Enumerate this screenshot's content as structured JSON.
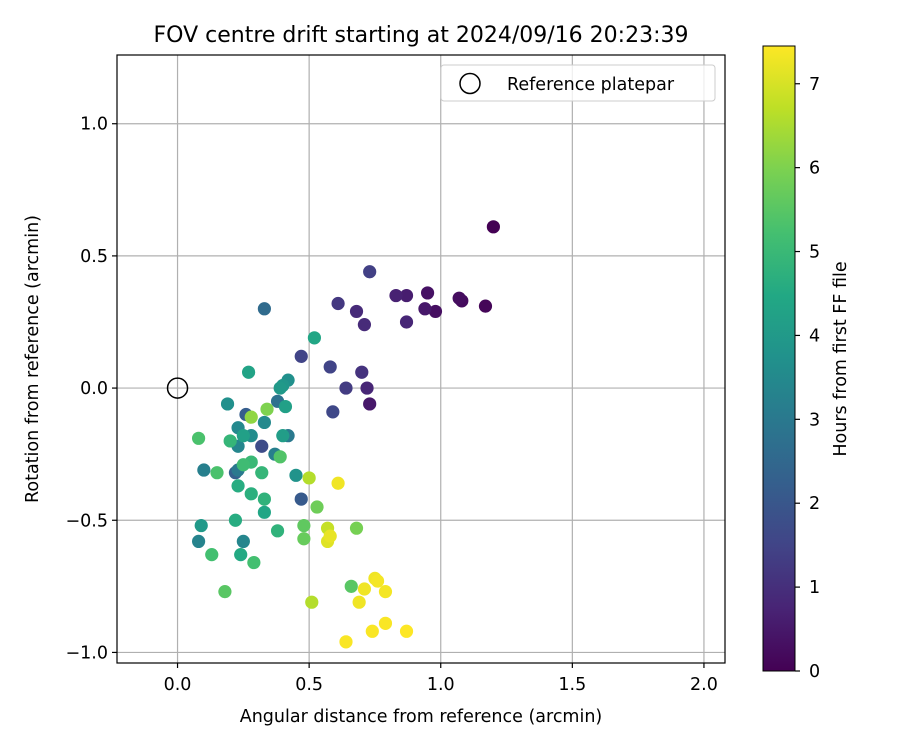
{
  "chart_data": {
    "type": "scatter",
    "title": "FOV centre drift starting at 2024/09/16 20:23:39",
    "xlabel": "Angular distance from reference (arcmin)",
    "ylabel": "Rotation from reference (arcmin)",
    "xlim": [
      -0.23,
      2.08
    ],
    "ylim": [
      -1.04,
      1.26
    ],
    "xticks": [
      0.0,
      0.5,
      1.0,
      1.5,
      2.0
    ],
    "xtick_labels": [
      "0.0",
      "0.5",
      "1.0",
      "1.5",
      "2.0"
    ],
    "yticks": [
      -1.0,
      -0.5,
      0.0,
      0.5,
      1.0
    ],
    "ytick_labels": [
      "−1.0",
      "−0.5",
      "0.0",
      "0.5",
      "1.0"
    ],
    "grid": true,
    "legend": {
      "position": "top-right",
      "label": "Reference platepar"
    },
    "reference_point": {
      "x": 0.0,
      "y": 0.0
    },
    "colorbar": {
      "label": "Hours from first FF file",
      "colormap": "viridis",
      "range": [
        0,
        7.45
      ],
      "ticks": [
        0,
        1,
        2,
        3,
        4,
        5,
        6,
        7
      ],
      "tick_labels": [
        "0",
        "1",
        "2",
        "3",
        "4",
        "5",
        "6",
        "7"
      ]
    },
    "points": [
      {
        "x": 1.2,
        "y": 0.61,
        "h": 0.0
      },
      {
        "x": 1.17,
        "y": 0.31,
        "h": 0.1
      },
      {
        "x": 1.08,
        "y": 0.33,
        "h": 0.2
      },
      {
        "x": 1.07,
        "y": 0.34,
        "h": 0.25
      },
      {
        "x": 0.98,
        "y": 0.29,
        "h": 0.3
      },
      {
        "x": 0.95,
        "y": 0.36,
        "h": 0.35
      },
      {
        "x": 0.94,
        "y": 0.3,
        "h": 0.5
      },
      {
        "x": 0.87,
        "y": 0.35,
        "h": 0.6
      },
      {
        "x": 0.83,
        "y": 0.35,
        "h": 0.7
      },
      {
        "x": 0.87,
        "y": 0.25,
        "h": 0.8
      },
      {
        "x": 0.73,
        "y": -0.06,
        "h": 0.5
      },
      {
        "x": 0.72,
        "y": 0.0,
        "h": 0.8
      },
      {
        "x": 0.71,
        "y": 0.24,
        "h": 0.9
      },
      {
        "x": 0.68,
        "y": 0.29,
        "h": 0.9
      },
      {
        "x": 0.7,
        "y": 0.06,
        "h": 1.1
      },
      {
        "x": 0.61,
        "y": 0.32,
        "h": 1.2
      },
      {
        "x": 0.64,
        "y": 0.0,
        "h": 1.3
      },
      {
        "x": 0.73,
        "y": 0.44,
        "h": 1.4
      },
      {
        "x": 0.58,
        "y": 0.08,
        "h": 1.5
      },
      {
        "x": 0.59,
        "y": -0.09,
        "h": 1.6
      },
      {
        "x": 0.47,
        "y": 0.12,
        "h": 1.5
      },
      {
        "x": 0.32,
        "y": -0.22,
        "h": 1.7
      },
      {
        "x": 0.47,
        "y": -0.42,
        "h": 2.1
      },
      {
        "x": 0.33,
        "y": 0.3,
        "h": 2.6
      },
      {
        "x": 0.26,
        "y": -0.1,
        "h": 2.2
      },
      {
        "x": 0.22,
        "y": -0.32,
        "h": 2.3
      },
      {
        "x": 0.38,
        "y": -0.05,
        "h": 2.8
      },
      {
        "x": 0.37,
        "y": -0.25,
        "h": 3.2
      },
      {
        "x": 0.42,
        "y": -0.18,
        "h": 3.0
      },
      {
        "x": 0.23,
        "y": -0.31,
        "h": 3.0
      },
      {
        "x": 0.1,
        "y": -0.31,
        "h": 3.2
      },
      {
        "x": 0.08,
        "y": -0.58,
        "h": 3.3
      },
      {
        "x": 0.25,
        "y": -0.58,
        "h": 3.4
      },
      {
        "x": 0.23,
        "y": -0.22,
        "h": 3.4
      },
      {
        "x": 0.33,
        "y": -0.13,
        "h": 3.5
      },
      {
        "x": 0.28,
        "y": -0.18,
        "h": 3.6
      },
      {
        "x": 0.23,
        "y": -0.15,
        "h": 3.5
      },
      {
        "x": 0.19,
        "y": -0.06,
        "h": 3.7
      },
      {
        "x": 0.42,
        "y": 0.03,
        "h": 3.7
      },
      {
        "x": 0.45,
        "y": -0.33,
        "h": 3.8
      },
      {
        "x": 0.4,
        "y": 0.01,
        "h": 3.9
      },
      {
        "x": 0.39,
        "y": 0.0,
        "h": 4.0
      },
      {
        "x": 0.4,
        "y": -0.18,
        "h": 4.1
      },
      {
        "x": 0.41,
        "y": -0.07,
        "h": 4.2
      },
      {
        "x": 0.25,
        "y": -0.18,
        "h": 4.2
      },
      {
        "x": 0.09,
        "y": -0.52,
        "h": 4.0
      },
      {
        "x": 0.27,
        "y": 0.06,
        "h": 4.3
      },
      {
        "x": 0.33,
        "y": -0.47,
        "h": 4.4
      },
      {
        "x": 0.52,
        "y": 0.19,
        "h": 4.4
      },
      {
        "x": 0.24,
        "y": -0.63,
        "h": 4.5
      },
      {
        "x": 0.23,
        "y": -0.37,
        "h": 4.6
      },
      {
        "x": 0.22,
        "y": -0.5,
        "h": 4.6
      },
      {
        "x": 0.28,
        "y": -0.4,
        "h": 4.7
      },
      {
        "x": 0.33,
        "y": -0.42,
        "h": 4.8
      },
      {
        "x": 0.38,
        "y": -0.54,
        "h": 4.8
      },
      {
        "x": 0.32,
        "y": -0.32,
        "h": 4.9
      },
      {
        "x": 0.2,
        "y": -0.2,
        "h": 4.9
      },
      {
        "x": 0.28,
        "y": -0.28,
        "h": 5.0
      },
      {
        "x": 0.25,
        "y": -0.29,
        "h": 5.1
      },
      {
        "x": 0.13,
        "y": -0.63,
        "h": 5.2
      },
      {
        "x": 0.29,
        "y": -0.66,
        "h": 5.2
      },
      {
        "x": 0.08,
        "y": -0.19,
        "h": 5.3
      },
      {
        "x": 0.15,
        "y": -0.32,
        "h": 5.3
      },
      {
        "x": 0.39,
        "y": -0.26,
        "h": 5.4
      },
      {
        "x": 0.18,
        "y": -0.77,
        "h": 5.5
      },
      {
        "x": 0.66,
        "y": -0.75,
        "h": 5.5
      },
      {
        "x": 0.48,
        "y": -0.52,
        "h": 5.6
      },
      {
        "x": 0.48,
        "y": -0.57,
        "h": 5.7
      },
      {
        "x": 0.53,
        "y": -0.45,
        "h": 5.8
      },
      {
        "x": 0.68,
        "y": -0.53,
        "h": 5.9
      },
      {
        "x": 0.34,
        "y": -0.08,
        "h": 6.0
      },
      {
        "x": 0.28,
        "y": -0.11,
        "h": 6.2
      },
      {
        "x": 0.5,
        "y": -0.34,
        "h": 6.6
      },
      {
        "x": 0.51,
        "y": -0.81,
        "h": 6.6
      },
      {
        "x": 0.57,
        "y": -0.53,
        "h": 6.8
      },
      {
        "x": 0.57,
        "y": -0.58,
        "h": 7.1
      },
      {
        "x": 0.58,
        "y": -0.56,
        "h": 7.2
      },
      {
        "x": 0.61,
        "y": -0.36,
        "h": 7.3
      },
      {
        "x": 0.69,
        "y": -0.81,
        "h": 7.3
      },
      {
        "x": 0.71,
        "y": -0.76,
        "h": 7.3
      },
      {
        "x": 0.75,
        "y": -0.72,
        "h": 7.3
      },
      {
        "x": 0.76,
        "y": -0.73,
        "h": 7.35
      },
      {
        "x": 0.79,
        "y": -0.77,
        "h": 7.35
      },
      {
        "x": 0.79,
        "y": -0.89,
        "h": 7.4
      },
      {
        "x": 0.74,
        "y": -0.92,
        "h": 7.4
      },
      {
        "x": 0.64,
        "y": -0.96,
        "h": 7.4
      },
      {
        "x": 0.87,
        "y": -0.92,
        "h": 7.45
      }
    ]
  }
}
